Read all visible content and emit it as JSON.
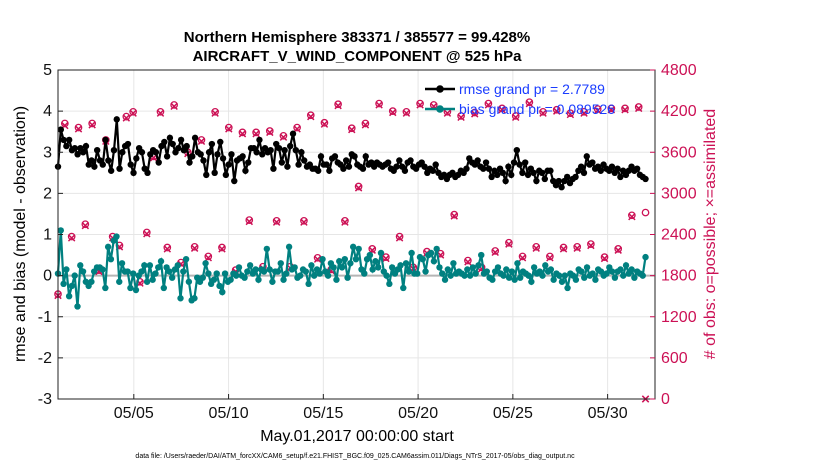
{
  "chart_data": {
    "type": "line",
    "title": "Northern Hemisphere 383371 / 385577 = 99.428%",
    "subtitle": "AIRCRAFT_V_WIND_COMPONENT @ 525 hPa",
    "xlabel": "May.01,2017 00:00:00 start",
    "ylabel_left": "rmse and bias (model - observation)",
    "ylabel_right": "# of obs: o=possible; ×=assimilated",
    "footer": "data file: /Users/raeder/DAI/ATM_forcXX/CAM6_setup/f.e21.FHIST_BGC.f09_025.CAM6assim.011/Diags_NTrS_2017-05/obs_diag_output.nc",
    "x_range": [
      1,
      32.5
    ],
    "x_ticks": [
      {
        "value": 5,
        "label": "05/05"
      },
      {
        "value": 10,
        "label": "05/10"
      },
      {
        "value": 15,
        "label": "05/15"
      },
      {
        "value": 20,
        "label": "05/20"
      },
      {
        "value": 25,
        "label": "05/25"
      },
      {
        "value": 30,
        "label": "05/30"
      }
    ],
    "y_left": {
      "range": [
        -3,
        5
      ],
      "ticks": [
        "-3",
        "-2",
        "-1",
        "0",
        "1",
        "2",
        "3",
        "4",
        "5"
      ]
    },
    "y_right": {
      "range": [
        0,
        4800
      ],
      "ticks": [
        "0",
        "600",
        "1200",
        "1800",
        "2400",
        "3000",
        "3600",
        "4200",
        "4800"
      ]
    },
    "legend": {
      "position": "top-right",
      "entries": [
        "rmse grand pr = 2.7789",
        "bias grand pr = 0.089526"
      ]
    },
    "series": [
      {
        "name": "rmse",
        "color": "#000000",
        "values": [
          2.65,
          3.55,
          3.3,
          3.15,
          3.3,
          3.05,
          3.1,
          2.95,
          3.1,
          3.0,
          3.15,
          2.7,
          2.8,
          2.65,
          3.05,
          2.8,
          2.7,
          3.3,
          2.8,
          2.55,
          3.05,
          3.8,
          2.6,
          3.0,
          3.15,
          3.2,
          2.7,
          2.5,
          2.85,
          3.1,
          3.0,
          2.6,
          2.5,
          2.95,
          3.05,
          3.0,
          2.75,
          3.15,
          3.25,
          2.9,
          3.35,
          3.2,
          3.0,
          3.1,
          3.3,
          3.05,
          3.15,
          2.75,
          2.9,
          3.35,
          3.0,
          2.95,
          2.8,
          2.45,
          3.0,
          3.2,
          2.5,
          2.95,
          3.25,
          2.85,
          2.45,
          2.7,
          2.95,
          2.3,
          2.8,
          2.85,
          2.9,
          2.55,
          2.75,
          3.1,
          3.1,
          3.0,
          3.3,
          2.95,
          3.1,
          3.0,
          3.05,
          2.6,
          3.2,
          3.1,
          2.75,
          3.05,
          2.65,
          3.15,
          3.45,
          3.05,
          2.7,
          3.0,
          2.8,
          2.65,
          2.7,
          2.6,
          2.6,
          2.55,
          2.9,
          2.7,
          2.7,
          2.55,
          2.85,
          2.9,
          2.75,
          2.7,
          2.6,
          2.8,
          2.65,
          2.95,
          2.9,
          2.7,
          2.65,
          2.6,
          2.9,
          2.7,
          2.75,
          2.65,
          2.75,
          2.7,
          2.65,
          2.7,
          2.75,
          2.6,
          2.55,
          2.65,
          2.8,
          2.65,
          2.55,
          2.75,
          2.8,
          2.65,
          2.6,
          2.7,
          2.75,
          2.65,
          2.5,
          2.6,
          2.55,
          2.7,
          2.5,
          2.4,
          2.45,
          2.35,
          2.45,
          2.5,
          2.4,
          2.45,
          2.55,
          2.5,
          2.6,
          2.85,
          2.75,
          2.7,
          2.8,
          2.65,
          2.6,
          2.75,
          2.6,
          2.4,
          2.55,
          2.45,
          2.6,
          2.5,
          2.3,
          2.65,
          2.45,
          2.75,
          3.05,
          2.7,
          2.5,
          2.75,
          2.45,
          2.6,
          2.5,
          2.3,
          2.55,
          2.5,
          2.35,
          2.55,
          2.55,
          2.3,
          2.2,
          2.3,
          2.15,
          2.3,
          2.4,
          2.25,
          2.35,
          2.4,
          2.55,
          2.65,
          2.5,
          2.9,
          2.7,
          2.75,
          2.6,
          2.65,
          2.55,
          2.7,
          2.6,
          2.55,
          2.65,
          2.5,
          2.6,
          2.4,
          2.55,
          2.45,
          2.55,
          2.65,
          2.55,
          2.6,
          2.45,
          2.4,
          2.35
        ]
      },
      {
        "name": "bias",
        "color": "#008080",
        "values": [
          0.05,
          1.1,
          -0.2,
          0.15,
          -0.5,
          -0.25,
          0.0,
          -0.75,
          0.25,
          0.1,
          -0.15,
          -0.25,
          -0.15,
          0.1,
          0.2,
          0.2,
          0.15,
          -0.3,
          0.7,
          0.4,
          0.85,
          0.95,
          -0.15,
          0.3,
          0.1,
          0.1,
          -0.3,
          0.05,
          -0.35,
          0.0,
          0.1,
          0.25,
          -0.15,
          0.25,
          -0.1,
          0.05,
          0.2,
          0.35,
          -0.3,
          0.2,
          0.1,
          -0.05,
          0.15,
          0.25,
          -0.55,
          0.1,
          0.4,
          -0.15,
          -0.6,
          -0.55,
          -0.05,
          -0.15,
          -0.05,
          0.3,
          0.05,
          -0.2,
          -0.1,
          0.05,
          -0.25,
          -0.4,
          0.05,
          -0.15,
          -0.1,
          0.05,
          0.0,
          0.2,
          0.0,
          -0.05,
          0.1,
          0.25,
          0.05,
          0.15,
          -0.1,
          0.15,
          0.1,
          0.65,
          0.15,
          -0.15,
          0.1,
          0.1,
          0.3,
          -0.1,
          0.05,
          0.7,
          0.15,
          0.2,
          -0.05,
          0.0,
          0.15,
          0.1,
          -0.2,
          0.25,
          0.0,
          0.15,
          0.05,
          0.4,
          0.1,
          0.0,
          0.3,
          0.2,
          -0.1,
          0.35,
          0.2,
          0.4,
          -0.05,
          0.3,
          0.7,
          0.4,
          0.65,
          0.15,
          0.05,
          0.4,
          0.5,
          0.15,
          0.35,
          0.2,
          0.55,
          0.1,
          0.0,
          -0.2,
          0.2,
          0.05,
          0.15,
          0.25,
          -0.3,
          0.3,
          0.1,
          0.55,
          0.05,
          0.05,
          0.45,
          0.4,
          0.1,
          0.5,
          0.55,
          0.35,
          0.65,
          0.2,
          0.05,
          -0.1,
          0.15,
          0.0,
          0.3,
          0.05,
          0.1,
          0.05,
          0.0,
          0.15,
          0.0,
          0.2,
          0.05,
          0.25,
          0.5,
          0.05,
          0.1,
          -0.05,
          -0.1,
          0.1,
          0.2,
          0.05,
          0.0,
          0.15,
          -0.05,
          0.1,
          -0.1,
          0.3,
          -0.05,
          0.1,
          0.05,
          0.0,
          -0.15,
          0.2,
          0.05,
          0.1,
          0.0,
          0.25,
          0.1,
          0.15,
          -0.1,
          0.05,
          0.0,
          -0.15,
          0.0,
          -0.3,
          0.05,
          0.0,
          -0.1,
          0.15,
          0.1,
          -0.05,
          0.2,
          0.0,
          0.05,
          -0.1,
          0.15,
          0.1,
          0.0,
          0.05,
          0.2,
          0.1,
          -0.05,
          0.1,
          0.15,
          0.0,
          0.25,
          0.05,
          0.15,
          -0.05,
          0.1,
          0.05,
          0.0,
          0.45
        ]
      },
      {
        "name": "obs possible",
        "color": "#cc1155",
        "marker": "circle",
        "values": [
          1530,
          4020,
          2370,
          3960,
          2550,
          4020,
          1880,
          3780,
          2370,
          2240,
          4120,
          4190,
          1710,
          2430,
          3540,
          4190,
          2210,
          4290,
          1990,
          3600,
          2220,
          3780,
          2080,
          4190,
          2210,
          3960,
          1880,
          3890,
          2610,
          3890,
          1930,
          3910,
          2600,
          3840,
          1930,
          3960,
          2600,
          4140,
          2060,
          4030,
          1890,
          4300,
          2600,
          3950,
          3100,
          4020,
          2190,
          4310,
          2070,
          4200,
          2370,
          4190,
          1920,
          4310,
          2150,
          4290,
          2120,
          4190,
          2690,
          4130,
          2020,
          4180,
          1920,
          4310,
          2160,
          4240,
          2280,
          4130,
          2080,
          4330,
          2220,
          4190,
          2080,
          4220,
          2210,
          4170,
          2220,
          4190,
          2260,
          4230,
          2070,
          4240,
          2190,
          4240,
          2680,
          4260,
          2720
        ]
      },
      {
        "name": "obs assimilated",
        "color": "#cc1155",
        "marker": "x",
        "values": [
          1510,
          3990,
          2350,
          3940,
          2530,
          4000,
          1860,
          3760,
          2350,
          2220,
          4100,
          4170,
          1690,
          2410,
          3520,
          4170,
          2190,
          4270,
          1970,
          3580,
          2200,
          3760,
          2060,
          4170,
          2190,
          3940,
          1860,
          3870,
          2590,
          3870,
          1910,
          3890,
          2580,
          3820,
          1910,
          3940,
          2580,
          4120,
          2040,
          4010,
          1870,
          4280,
          2580,
          3930,
          3080,
          4000,
          2170,
          4290,
          2050,
          4180,
          2350,
          4170,
          1900,
          4290,
          2130,
          4270,
          2100,
          4170,
          2670,
          4110,
          2000,
          4160,
          1900,
          4290,
          2140,
          4220,
          2260,
          4110,
          2060,
          4310,
          2200,
          4170,
          2060,
          4200,
          2190,
          4150,
          2200,
          4170,
          2240,
          4210,
          2050,
          4220,
          2170,
          4220,
          2660,
          4240,
          0
        ]
      }
    ]
  }
}
